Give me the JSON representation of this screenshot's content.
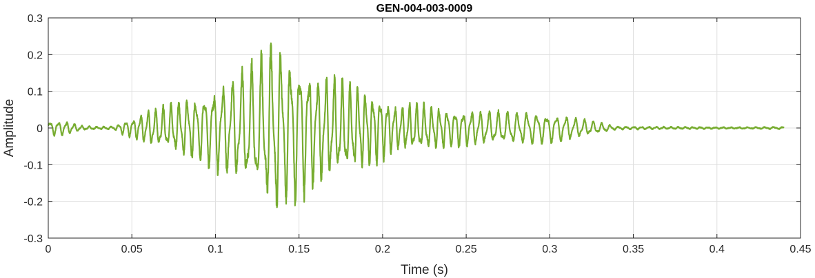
{
  "chart_data": {
    "type": "line",
    "title": "GEN-004-003-0009",
    "xlabel": "Time (s)",
    "ylabel": "Amplitude",
    "xlim": [
      0,
      0.45
    ],
    "ylim": [
      -0.3,
      0.3
    ],
    "xticks": [
      0,
      0.05,
      0.1,
      0.15,
      0.2,
      0.25,
      0.3,
      0.35,
      0.4,
      0.45
    ],
    "xtick_labels": [
      "0",
      "0.05",
      "0.1",
      "0.15",
      "0.2",
      "0.25",
      "0.3",
      "0.35",
      "0.4",
      "0.45"
    ],
    "yticks": [
      -0.3,
      -0.2,
      -0.1,
      0,
      0.1,
      0.2,
      0.3
    ],
    "ytick_labels": [
      "-0.3",
      "-0.2",
      "-0.1",
      "0",
      "0.1",
      "0.2",
      "0.3"
    ],
    "grid": true,
    "line_color": "#77ac30",
    "series": [
      {
        "x_start": 0,
        "x_end": 0.44,
        "envelope_points": [
          {
            "t": 0.0,
            "a": 0.02
          },
          {
            "t": 0.01,
            "a": 0.02
          },
          {
            "t": 0.02,
            "a": 0.006
          },
          {
            "t": 0.03,
            "a": 0.003
          },
          {
            "t": 0.04,
            "a": 0.005
          },
          {
            "t": 0.045,
            "a": 0.02
          },
          {
            "t": 0.05,
            "a": 0.025
          },
          {
            "t": 0.06,
            "a": 0.05
          },
          {
            "t": 0.07,
            "a": 0.06
          },
          {
            "t": 0.08,
            "a": 0.08
          },
          {
            "t": 0.09,
            "a": 0.09
          },
          {
            "t": 0.1,
            "a": 0.12
          },
          {
            "t": 0.11,
            "a": 0.14
          },
          {
            "t": 0.12,
            "a": 0.17
          },
          {
            "t": 0.13,
            "a": 0.21
          },
          {
            "t": 0.135,
            "a": 0.25
          },
          {
            "t": 0.14,
            "a": 0.22
          },
          {
            "t": 0.15,
            "a": 0.2
          },
          {
            "t": 0.16,
            "a": 0.16
          },
          {
            "t": 0.17,
            "a": 0.14
          },
          {
            "t": 0.18,
            "a": 0.13
          },
          {
            "t": 0.19,
            "a": 0.11
          },
          {
            "t": 0.2,
            "a": 0.09
          },
          {
            "t": 0.21,
            "a": 0.06
          },
          {
            "t": 0.22,
            "a": 0.07
          },
          {
            "t": 0.23,
            "a": 0.06
          },
          {
            "t": 0.25,
            "a": 0.05
          },
          {
            "t": 0.27,
            "a": 0.045
          },
          {
            "t": 0.29,
            "a": 0.045
          },
          {
            "t": 0.31,
            "a": 0.035
          },
          {
            "t": 0.32,
            "a": 0.025
          },
          {
            "t": 0.33,
            "a": 0.015
          },
          {
            "t": 0.34,
            "a": 0.004
          },
          {
            "t": 0.37,
            "a": 0.003
          },
          {
            "t": 0.41,
            "a": 0.002
          },
          {
            "t": 0.44,
            "a": 0.003
          }
        ],
        "dominant_frequency_hz": 200
      }
    ]
  }
}
